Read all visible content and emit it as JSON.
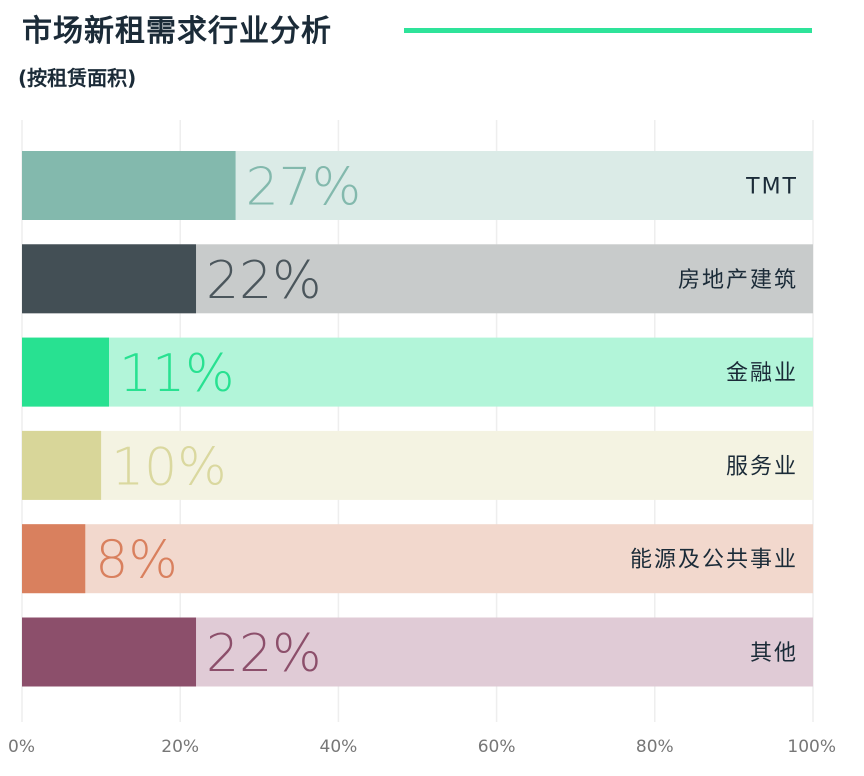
{
  "header": {
    "title": "市场新租需求行业分析",
    "subtitle": "(按租赁面积)"
  },
  "chart_data": {
    "type": "bar",
    "orientation": "horizontal",
    "title": "市场新租需求行业分析",
    "subtitle": "(按租赁面积)",
    "categories": [
      "TMT",
      "房地产建筑",
      "金融业",
      "服务业",
      "能源及公共事业",
      "其他"
    ],
    "values": [
      27,
      22,
      11,
      10,
      8,
      22
    ],
    "value_labels": [
      "27%",
      "22%",
      "11%",
      "10%",
      "8%",
      "22%"
    ],
    "xlim": [
      0,
      100
    ],
    "x_ticks": [
      0,
      20,
      40,
      60,
      80,
      100
    ],
    "x_tick_labels": [
      "0%",
      "20%",
      "40%",
      "60%",
      "80%",
      "100%"
    ],
    "grid": "vertical",
    "colors": {
      "bar": [
        "#83b9ad",
        "#434f55",
        "#28e191",
        "#d8d699",
        "#d9805e",
        "#8c4f6b"
      ],
      "track": [
        "#dbebe7",
        "#c8cbcb",
        "#b2f5d9",
        "#f4f3e2",
        "#f2d8cd",
        "#e0cbd6"
      ],
      "value_label": [
        "#83b9ad",
        "#4b565c",
        "#28e191",
        "#dad89f",
        "#d9805e",
        "#8c4f6b"
      ],
      "category_label": "#1b2b38",
      "gridline": "#eeeeee",
      "tick_label": "#777777"
    }
  }
}
